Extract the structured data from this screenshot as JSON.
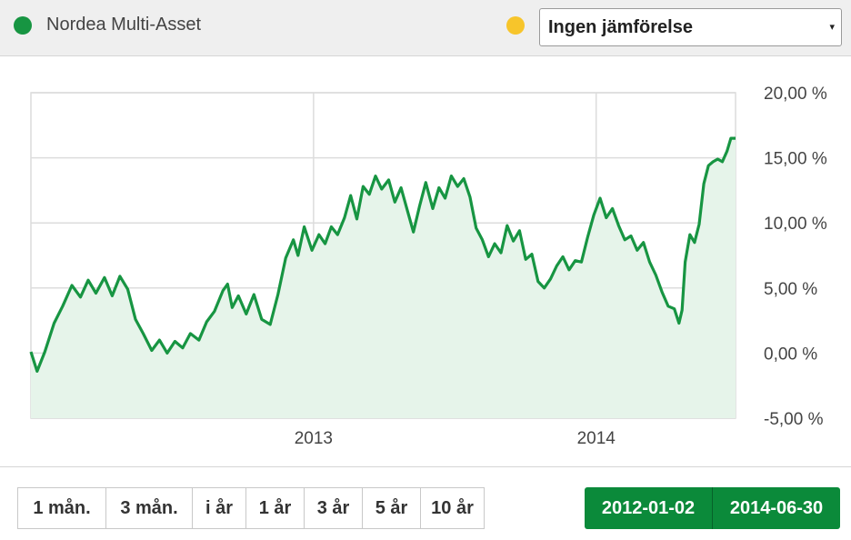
{
  "header": {
    "fund_name": "Nordea Multi-Asset",
    "fund_dot_color": "#179542",
    "compare_dot_color": "#f7c52b",
    "compare_select": {
      "selected": "Ingen jämförelse",
      "arrow": "▾"
    }
  },
  "chart_data": {
    "type": "area",
    "series": [
      {
        "name": "Nordea Multi-Asset",
        "color": "#179542"
      }
    ],
    "x_ticks": [
      "2013",
      "2014"
    ],
    "y_ticks": [
      "20,00 %",
      "15,00 %",
      "10,00 %",
      "5,00 %",
      "0,00 %",
      "-5,00 %"
    ],
    "ylim": [
      -5,
      20
    ],
    "xlim": [
      "2012-01-02",
      "2014-06-30"
    ],
    "grid": true,
    "points": [
      [
        "2012-01-02",
        0.1
      ],
      [
        "2012-01-10",
        -1.4
      ],
      [
        "2012-01-20",
        0.1
      ],
      [
        "2012-02-01",
        2.3
      ],
      [
        "2012-02-12",
        3.6
      ],
      [
        "2012-02-24",
        5.2
      ],
      [
        "2012-03-06",
        4.3
      ],
      [
        "2012-03-16",
        5.6
      ],
      [
        "2012-03-26",
        4.6
      ],
      [
        "2012-04-06",
        5.8
      ],
      [
        "2012-04-16",
        4.4
      ],
      [
        "2012-04-26",
        5.9
      ],
      [
        "2012-05-06",
        4.9
      ],
      [
        "2012-05-16",
        2.6
      ],
      [
        "2012-05-26",
        1.5
      ],
      [
        "2012-06-06",
        0.2
      ],
      [
        "2012-06-16",
        1.0
      ],
      [
        "2012-06-26",
        0.0
      ],
      [
        "2012-07-06",
        0.9
      ],
      [
        "2012-07-16",
        0.4
      ],
      [
        "2012-07-26",
        1.5
      ],
      [
        "2012-08-06",
        1.0
      ],
      [
        "2012-08-16",
        2.4
      ],
      [
        "2012-08-26",
        3.2
      ],
      [
        "2012-09-06",
        4.8
      ],
      [
        "2012-09-12",
        5.3
      ],
      [
        "2012-09-18",
        3.5
      ],
      [
        "2012-09-26",
        4.4
      ],
      [
        "2012-10-06",
        3.0
      ],
      [
        "2012-10-16",
        4.5
      ],
      [
        "2012-10-26",
        2.6
      ],
      [
        "2012-11-06",
        2.2
      ],
      [
        "2012-11-16",
        4.5
      ],
      [
        "2012-11-26",
        7.3
      ],
      [
        "2012-12-06",
        8.7
      ],
      [
        "2012-12-12",
        7.5
      ],
      [
        "2012-12-20",
        9.7
      ],
      [
        "2012-12-30",
        7.9
      ],
      [
        "2013-01-08",
        9.1
      ],
      [
        "2013-01-16",
        8.4
      ],
      [
        "2013-01-24",
        9.7
      ],
      [
        "2013-02-01",
        9.1
      ],
      [
        "2013-02-10",
        10.4
      ],
      [
        "2013-02-18",
        12.1
      ],
      [
        "2013-02-26",
        10.3
      ],
      [
        "2013-03-06",
        12.8
      ],
      [
        "2013-03-14",
        12.2
      ],
      [
        "2013-03-22",
        13.6
      ],
      [
        "2013-03-30",
        12.6
      ],
      [
        "2013-04-08",
        13.3
      ],
      [
        "2013-04-16",
        11.6
      ],
      [
        "2013-04-24",
        12.7
      ],
      [
        "2013-05-02",
        11.0
      ],
      [
        "2013-05-10",
        9.3
      ],
      [
        "2013-05-18",
        11.3
      ],
      [
        "2013-05-26",
        13.1
      ],
      [
        "2013-06-04",
        11.1
      ],
      [
        "2013-06-12",
        12.7
      ],
      [
        "2013-06-20",
        11.9
      ],
      [
        "2013-06-28",
        13.6
      ],
      [
        "2013-07-06",
        12.8
      ],
      [
        "2013-07-14",
        13.4
      ],
      [
        "2013-07-22",
        12.0
      ],
      [
        "2013-07-30",
        9.6
      ],
      [
        "2013-08-07",
        8.7
      ],
      [
        "2013-08-15",
        7.4
      ],
      [
        "2013-08-23",
        8.4
      ],
      [
        "2013-08-31",
        7.7
      ],
      [
        "2013-09-08",
        9.8
      ],
      [
        "2013-09-16",
        8.6
      ],
      [
        "2013-09-24",
        9.4
      ],
      [
        "2013-10-02",
        7.2
      ],
      [
        "2013-10-10",
        7.6
      ],
      [
        "2013-10-18",
        5.5
      ],
      [
        "2013-10-26",
        5.0
      ],
      [
        "2013-11-03",
        5.7
      ],
      [
        "2013-11-11",
        6.7
      ],
      [
        "2013-11-19",
        7.4
      ],
      [
        "2013-11-27",
        6.4
      ],
      [
        "2013-12-05",
        7.1
      ],
      [
        "2013-12-13",
        7.0
      ],
      [
        "2013-12-21",
        8.9
      ],
      [
        "2013-12-29",
        10.6
      ],
      [
        "2014-01-06",
        11.9
      ],
      [
        "2014-01-14",
        10.4
      ],
      [
        "2014-01-22",
        11.1
      ],
      [
        "2014-01-30",
        9.8
      ],
      [
        "2014-02-07",
        8.7
      ],
      [
        "2014-02-15",
        9.0
      ],
      [
        "2014-02-23",
        7.9
      ],
      [
        "2014-03-03",
        8.5
      ],
      [
        "2014-03-11",
        7.0
      ],
      [
        "2014-03-19",
        6.0
      ],
      [
        "2014-03-27",
        4.7
      ],
      [
        "2014-04-04",
        3.6
      ],
      [
        "2014-04-12",
        3.4
      ],
      [
        "2014-04-18",
        2.3
      ],
      [
        "2014-04-22",
        3.3
      ],
      [
        "2014-04-26",
        7.0
      ],
      [
        "2014-05-02",
        9.1
      ],
      [
        "2014-05-08",
        8.5
      ],
      [
        "2014-05-14",
        9.9
      ],
      [
        "2014-05-20",
        13.0
      ],
      [
        "2014-05-26",
        14.4
      ],
      [
        "2014-06-01",
        14.7
      ],
      [
        "2014-06-07",
        14.9
      ],
      [
        "2014-06-13",
        14.7
      ],
      [
        "2014-06-19",
        15.5
      ],
      [
        "2014-06-24",
        16.5
      ],
      [
        "2014-06-30",
        16.5
      ]
    ]
  },
  "ranges": [
    "1 mån.",
    "3 mån.",
    "i år",
    "1 år",
    "3 år",
    "5 år",
    "10 år"
  ],
  "date_range": {
    "from": "2012-01-02",
    "to": "2014-06-30"
  }
}
